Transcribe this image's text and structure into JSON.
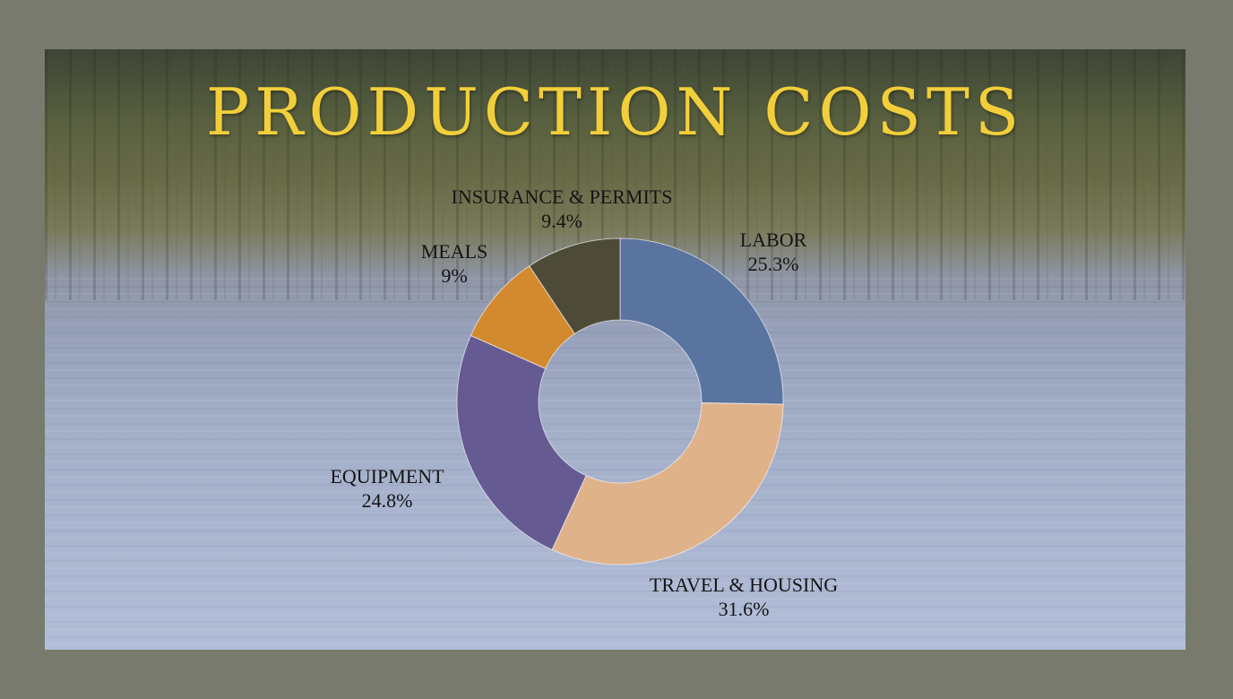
{
  "chart_data": {
    "type": "pie",
    "title": "PRODUCTION COSTS",
    "categories": [
      "LABOR",
      "TRAVEL & HOUSING",
      "EQUIPMENT",
      "MEALS",
      "INSURANCE & PERMITS"
    ],
    "values": [
      25.3,
      31.6,
      24.8,
      9,
      9.4
    ],
    "value_labels": [
      "25.3%",
      "31.6%",
      "24.8%",
      "9%",
      "9.4%"
    ],
    "colors": [
      "#5a74a0",
      "#e0b28a",
      "#655a92",
      "#d38a2e",
      "#4d4b38"
    ],
    "donut": true,
    "legend": "none"
  }
}
